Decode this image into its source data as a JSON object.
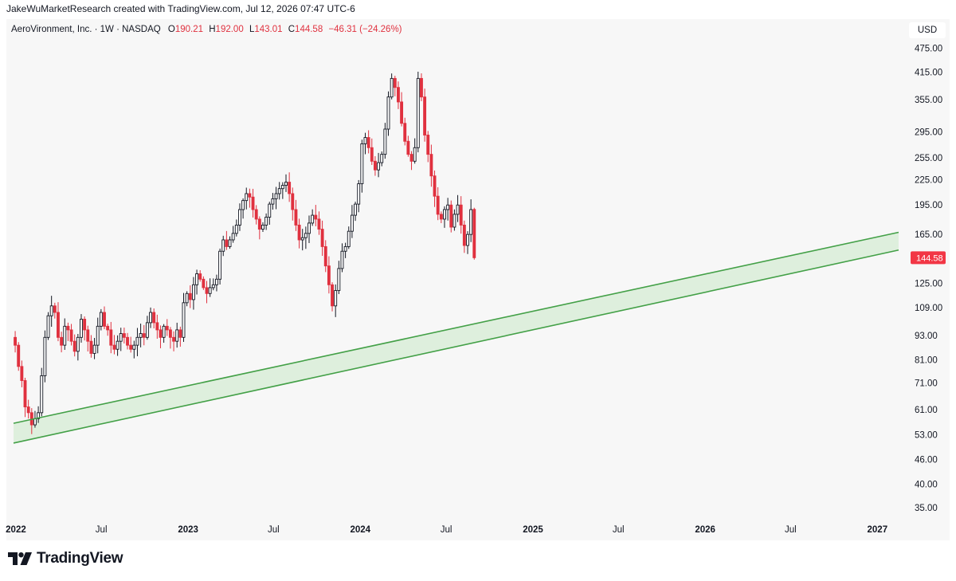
{
  "attribution": "JakeWuMarketResearch created with TradingView.com, Jul 12, 2026 07:47 UTC-6",
  "legend": {
    "symbol_label": "AeroVironment, Inc. · 1W · NASDAQ",
    "o_label": "O",
    "o_value": "190.21",
    "h_label": "H",
    "h_value": "192.00",
    "l_label": "L",
    "l_value": "143.01",
    "c_label": "C",
    "c_value": "144.58",
    "change": "−46.31 (−24.26%)"
  },
  "currency": "USD",
  "brand_name": "TradingView",
  "colors": {
    "up": "#131722",
    "down": "#e0313f",
    "channel_line": "#43a047",
    "channel_fill": "#d6ecd4",
    "background": "#f7f7f7"
  },
  "chart_data": {
    "type": "candlestick",
    "interval": "1W",
    "scale": "log",
    "ylim": [
      33,
      560
    ],
    "y_ticks": [
      "475.00",
      "415.00",
      "355.00",
      "295.00",
      "255.00",
      "225.00",
      "195.00",
      "165.00",
      "125.00",
      "109.00",
      "93.00",
      "81.00",
      "71.00",
      "61.00",
      "53.00",
      "46.00",
      "40.00",
      "35.00"
    ],
    "x_ticks": [
      "2022",
      "Jul",
      "2023",
      "Jul",
      "2024",
      "Jul",
      "2025",
      "Jul",
      "2026",
      "Jul",
      "2027"
    ],
    "last_price": "144.58",
    "closes": [
      88,
      78,
      72,
      62,
      60,
      56,
      58,
      60,
      74,
      92,
      104,
      110,
      106,
      92,
      88,
      98,
      96,
      90,
      85,
      92,
      102,
      96,
      90,
      84,
      88,
      98,
      106,
      98,
      96,
      88,
      86,
      90,
      94,
      92,
      88,
      86,
      88,
      92,
      94,
      92,
      100,
      106,
      100,
      96,
      92,
      98,
      96,
      92,
      90,
      96,
      92,
      112,
      118,
      114,
      124,
      132,
      128,
      122,
      118,
      122,
      124,
      128,
      150,
      160,
      154,
      160,
      166,
      174,
      190,
      200,
      208,
      204,
      190,
      180,
      170,
      174,
      182,
      196,
      202,
      208,
      214,
      218,
      222,
      208,
      190,
      174,
      160,
      162,
      166,
      176,
      184,
      180,
      170,
      154,
      138,
      124,
      110,
      120,
      136,
      150,
      154,
      168,
      184,
      196,
      220,
      276,
      286,
      270,
      250,
      238,
      248,
      260,
      300,
      360,
      400,
      380,
      350,
      310,
      280,
      260,
      250,
      270,
      400,
      360,
      290,
      260,
      230,
      205,
      185,
      180,
      190,
      195,
      172,
      185,
      195,
      174,
      155,
      165,
      190,
      144.58
    ],
    "channel": {
      "upper": [
        [
          "2021-12-27",
          56.5
        ],
        [
          "2027-02-15",
          167
        ]
      ],
      "lower": [
        [
          "2021-12-27",
          50.5
        ],
        [
          "2027-02-15",
          151
        ]
      ]
    }
  }
}
